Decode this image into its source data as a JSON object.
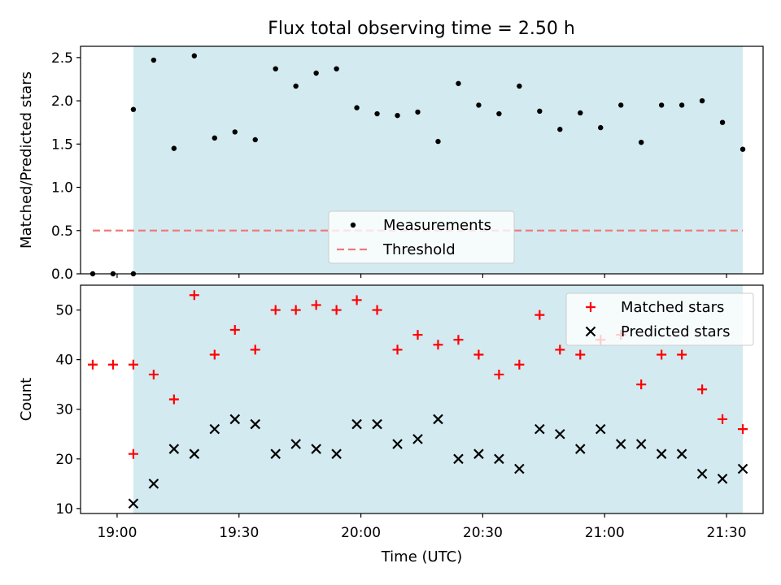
{
  "figure_title": "Flux total observing time = 2.50 h",
  "shaded_color": "#d3eaf0",
  "chart_data": [
    {
      "type": "scatter",
      "ylabel": "Matched/Predicted stars",
      "xlabel": "",
      "xlim": [
        "18:51",
        "21:39"
      ],
      "ylim": [
        0,
        2.63
      ],
      "xticks": [
        "19:00",
        "19:30",
        "20:00",
        "20:30",
        "21:00",
        "21:30"
      ],
      "yticks": [
        0.0,
        0.5,
        1.0,
        1.5,
        2.0,
        2.5
      ],
      "ytick_labels": [
        "0.0",
        "0.5",
        "1.0",
        "1.5",
        "2.0",
        "2.5"
      ],
      "shaded_span": [
        "19:04",
        "21:34"
      ],
      "legend": {
        "position": "lower-center",
        "entries": [
          "Measurements",
          "Threshold"
        ]
      },
      "series": [
        {
          "name": "Measurements",
          "marker": "dot",
          "color": "#000000",
          "points": [
            [
              "18:54",
              0.0
            ],
            [
              "18:59",
              0.0
            ],
            [
              "19:04",
              0.0
            ],
            [
              "19:04",
              1.9
            ],
            [
              "19:09",
              2.47
            ],
            [
              "19:14",
              1.45
            ],
            [
              "19:19",
              2.52
            ],
            [
              "19:24",
              1.57
            ],
            [
              "19:29",
              1.64
            ],
            [
              "19:34",
              1.55
            ],
            [
              "19:39",
              2.37
            ],
            [
              "19:44",
              2.17
            ],
            [
              "19:49",
              2.32
            ],
            [
              "19:54",
              2.37
            ],
            [
              "19:59",
              1.92
            ],
            [
              "20:04",
              1.85
            ],
            [
              "20:09",
              1.83
            ],
            [
              "20:14",
              1.87
            ],
            [
              "20:19",
              1.53
            ],
            [
              "20:24",
              2.2
            ],
            [
              "20:29",
              1.95
            ],
            [
              "20:34",
              1.85
            ],
            [
              "20:39",
              2.17
            ],
            [
              "20:44",
              1.88
            ],
            [
              "20:49",
              1.67
            ],
            [
              "20:54",
              1.86
            ],
            [
              "20:59",
              1.69
            ],
            [
              "21:04",
              1.95
            ],
            [
              "21:09",
              1.52
            ],
            [
              "21:14",
              1.95
            ],
            [
              "21:19",
              1.95
            ],
            [
              "21:24",
              2.0
            ],
            [
              "21:29",
              1.75
            ],
            [
              "21:34",
              1.44
            ]
          ]
        },
        {
          "name": "Threshold",
          "line_style": "dashed",
          "color": "#f07a7a",
          "points": [
            [
              "18:54",
              0.5
            ],
            [
              "21:34",
              0.5
            ]
          ]
        }
      ]
    },
    {
      "type": "scatter",
      "ylabel": "Count",
      "xlabel": "Time (UTC)",
      "xlim": [
        "18:51",
        "21:39"
      ],
      "ylim": [
        9,
        55
      ],
      "xticks": [
        "19:00",
        "19:30",
        "20:00",
        "20:30",
        "21:00",
        "21:30"
      ],
      "yticks": [
        10,
        20,
        30,
        40,
        50
      ],
      "ytick_labels": [
        "10",
        "20",
        "30",
        "40",
        "50"
      ],
      "shaded_span": [
        "19:04",
        "21:34"
      ],
      "legend": {
        "position": "top-right",
        "entries": [
          "Matched stars",
          "Predicted stars"
        ]
      },
      "series": [
        {
          "name": "Matched stars",
          "marker": "plus",
          "color": "#ff0000",
          "points": [
            [
              "18:54",
              39
            ],
            [
              "18:59",
              39
            ],
            [
              "19:04",
              39
            ],
            [
              "19:04",
              21
            ],
            [
              "19:09",
              37
            ],
            [
              "19:14",
              32
            ],
            [
              "19:19",
              53
            ],
            [
              "19:24",
              41
            ],
            [
              "19:29",
              46
            ],
            [
              "19:34",
              42
            ],
            [
              "19:39",
              50
            ],
            [
              "19:44",
              50
            ],
            [
              "19:49",
              51
            ],
            [
              "19:54",
              50
            ],
            [
              "19:59",
              52
            ],
            [
              "20:04",
              50
            ],
            [
              "20:09",
              42
            ],
            [
              "20:14",
              45
            ],
            [
              "20:19",
              43
            ],
            [
              "20:24",
              44
            ],
            [
              "20:29",
              41
            ],
            [
              "20:34",
              37
            ],
            [
              "20:39",
              39
            ],
            [
              "20:44",
              49
            ],
            [
              "20:49",
              42
            ],
            [
              "20:54",
              41
            ],
            [
              "20:59",
              44
            ],
            [
              "21:04",
              45
            ],
            [
              "21:09",
              35
            ],
            [
              "21:14",
              41
            ],
            [
              "21:19",
              41
            ],
            [
              "21:24",
              34
            ],
            [
              "21:29",
              28
            ],
            [
              "21:34",
              26
            ]
          ]
        },
        {
          "name": "Predicted stars",
          "marker": "x",
          "color": "#000000",
          "points": [
            [
              "19:04",
              11
            ],
            [
              "19:09",
              15
            ],
            [
              "19:14",
              22
            ],
            [
              "19:19",
              21
            ],
            [
              "19:24",
              26
            ],
            [
              "19:29",
              28
            ],
            [
              "19:34",
              27
            ],
            [
              "19:39",
              21
            ],
            [
              "19:44",
              23
            ],
            [
              "19:49",
              22
            ],
            [
              "19:54",
              21
            ],
            [
              "19:59",
              27
            ],
            [
              "20:04",
              27
            ],
            [
              "20:09",
              23
            ],
            [
              "20:14",
              24
            ],
            [
              "20:19",
              28
            ],
            [
              "20:24",
              20
            ],
            [
              "20:29",
              21
            ],
            [
              "20:34",
              20
            ],
            [
              "20:39",
              18
            ],
            [
              "20:44",
              26
            ],
            [
              "20:49",
              25
            ],
            [
              "20:54",
              22
            ],
            [
              "20:59",
              26
            ],
            [
              "21:04",
              23
            ],
            [
              "21:09",
              23
            ],
            [
              "21:14",
              21
            ],
            [
              "21:19",
              21
            ],
            [
              "21:24",
              17
            ],
            [
              "21:29",
              16
            ],
            [
              "21:34",
              18
            ]
          ]
        }
      ]
    }
  ]
}
